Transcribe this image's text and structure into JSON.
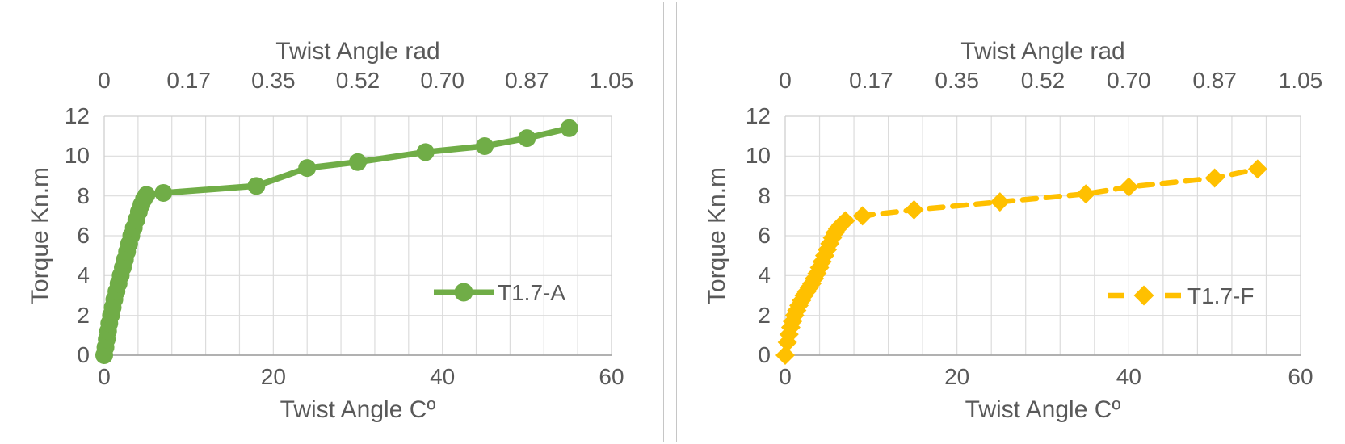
{
  "page": {
    "background": "#ffffff",
    "text_color": "#595959"
  },
  "chart_data": [
    {
      "type": "line",
      "title": "",
      "legend": {
        "label": "T1.7-A",
        "position": "inside-right"
      },
      "grid": {
        "vertical_divisions": 15,
        "horizontal_divisions": 6,
        "grid_on": true
      },
      "axes": {
        "x_top": {
          "label": "Twist Angle rad",
          "ticks": [
            "0",
            "0.17",
            "0.35",
            "0.52",
            "0.70",
            "0.87",
            "1.05"
          ],
          "range": [
            0,
            1.05
          ]
        },
        "x_bottom": {
          "label": "Twist Angle Cº",
          "ticks": [
            "0",
            "20",
            "40",
            "60"
          ],
          "range": [
            0,
            60
          ]
        },
        "y_left": {
          "label": "Torque Kn.m",
          "ticks": [
            "0",
            "2",
            "4",
            "6",
            "8",
            "10",
            "12"
          ],
          "range": [
            0,
            12
          ]
        }
      },
      "series": [
        {
          "name": "T1.7-A",
          "color": "#70AD47",
          "line_style": "solid",
          "marker": "circle",
          "x_unit": "degrees",
          "points": [
            [
              0,
              0
            ],
            [
              0.15,
              0.4
            ],
            [
              0.3,
              0.8
            ],
            [
              0.45,
              1.2
            ],
            [
              0.6,
              1.6
            ],
            [
              0.8,
              2.0
            ],
            [
              1.0,
              2.4
            ],
            [
              1.2,
              2.8
            ],
            [
              1.45,
              3.2
            ],
            [
              1.7,
              3.6
            ],
            [
              1.95,
              4.0
            ],
            [
              2.2,
              4.4
            ],
            [
              2.45,
              4.8
            ],
            [
              2.7,
              5.2
            ],
            [
              2.95,
              5.6
            ],
            [
              3.2,
              6.0
            ],
            [
              3.5,
              6.4
            ],
            [
              3.8,
              6.8
            ],
            [
              4.1,
              7.2
            ],
            [
              4.4,
              7.55
            ],
            [
              4.7,
              7.85
            ],
            [
              5.0,
              8.05
            ],
            [
              7,
              8.15
            ],
            [
              18,
              8.5
            ],
            [
              24,
              9.4
            ],
            [
              30,
              9.7
            ],
            [
              38,
              10.2
            ],
            [
              45,
              10.5
            ],
            [
              50,
              10.9
            ],
            [
              55,
              11.4
            ]
          ]
        }
      ]
    },
    {
      "type": "line",
      "title": "",
      "legend": {
        "label": "T1.7-F",
        "position": "inside-right"
      },
      "grid": {
        "vertical_divisions": 15,
        "horizontal_divisions": 6,
        "grid_on": true
      },
      "axes": {
        "x_top": {
          "label": "Twist Angle rad",
          "ticks": [
            "0",
            "0.17",
            "0.35",
            "0.52",
            "0.70",
            "0.87",
            "1.05"
          ],
          "range": [
            0,
            1.05
          ]
        },
        "x_bottom": {
          "label": "Twist Angle Cº",
          "ticks": [
            "0",
            "20",
            "40",
            "60"
          ],
          "range": [
            0,
            60
          ]
        },
        "y_left": {
          "label": "Torque Kn.m",
          "ticks": [
            "0",
            "2",
            "4",
            "6",
            "8",
            "10",
            "12"
          ],
          "range": [
            0,
            12
          ]
        }
      },
      "series": [
        {
          "name": "T1.7-F",
          "color": "#FFC000",
          "line_style": "dashed",
          "marker": "diamond",
          "x_unit": "degrees",
          "points": [
            [
              0,
              0
            ],
            [
              0.25,
              0.65
            ],
            [
              0.45,
              1.05
            ],
            [
              0.65,
              1.4
            ],
            [
              0.85,
              1.7
            ],
            [
              1.1,
              2.0
            ],
            [
              1.35,
              2.25
            ],
            [
              1.6,
              2.5
            ],
            [
              1.9,
              2.75
            ],
            [
              2.2,
              3.0
            ],
            [
              2.5,
              3.2
            ],
            [
              2.8,
              3.4
            ],
            [
              3.1,
              3.6
            ],
            [
              3.4,
              3.85
            ],
            [
              3.7,
              4.1
            ],
            [
              4.0,
              4.4
            ],
            [
              4.3,
              4.7
            ],
            [
              4.6,
              5.0
            ],
            [
              4.9,
              5.3
            ],
            [
              5.2,
              5.6
            ],
            [
              5.5,
              5.9
            ],
            [
              5.8,
              6.15
            ],
            [
              6.1,
              6.35
            ],
            [
              6.5,
              6.55
            ],
            [
              7.0,
              6.75
            ],
            [
              9,
              7.0
            ],
            [
              15,
              7.3
            ],
            [
              25,
              7.7
            ],
            [
              35,
              8.1
            ],
            [
              40,
              8.45
            ],
            [
              50,
              8.9
            ],
            [
              55,
              9.35
            ]
          ]
        }
      ]
    }
  ]
}
